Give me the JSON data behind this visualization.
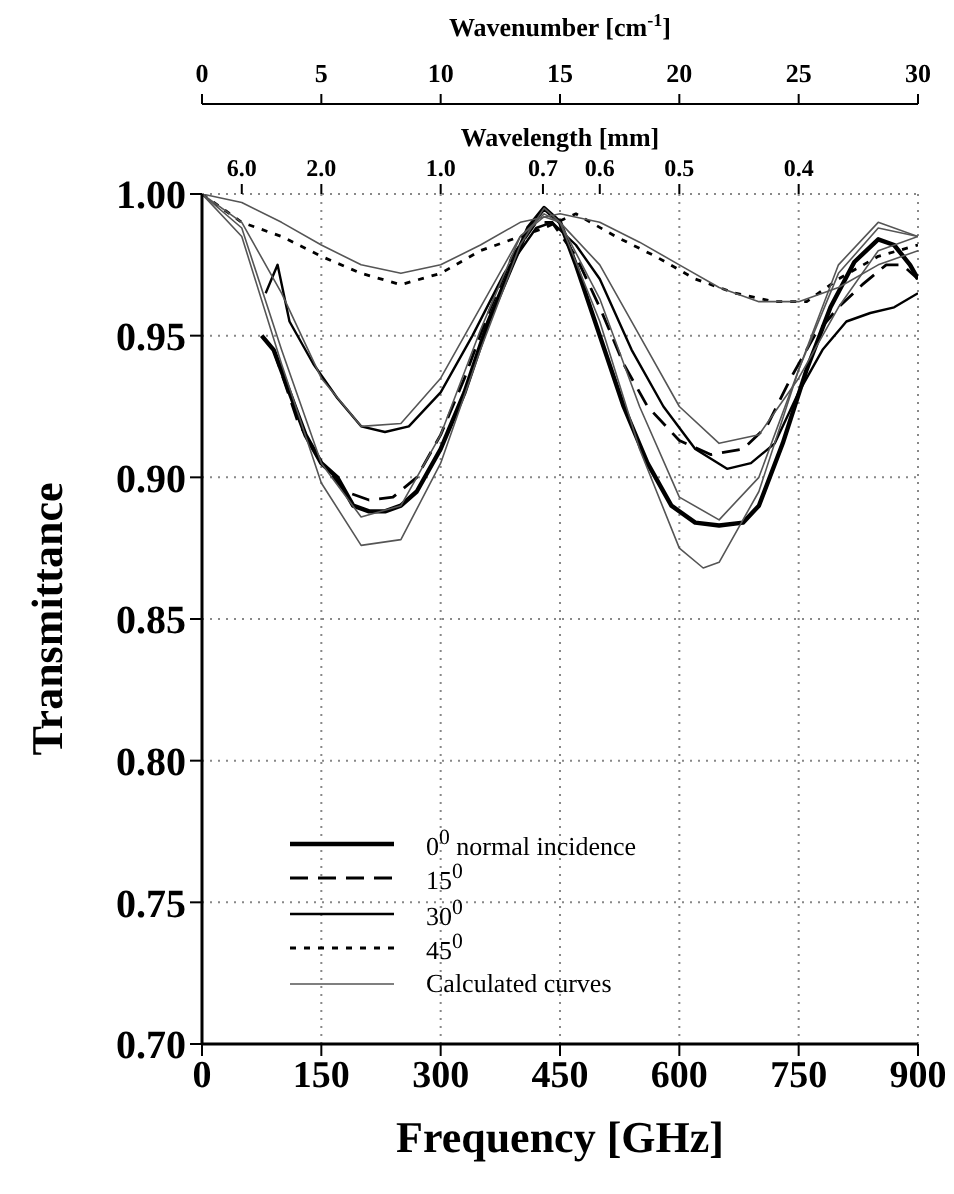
{
  "chart_data": {
    "type": "line",
    "xlabel": "Frequency [GHz]",
    "ylabel": "Transmittance",
    "x2label": "Wavenumber [cm$^{-1}$]",
    "xlim": [
      0,
      900
    ],
    "xticks": [
      0,
      150,
      300,
      450,
      600,
      750,
      900
    ],
    "ylim": [
      0.7,
      1.0
    ],
    "yticks": [
      {
        "value": 0.7,
        "label": "0.70"
      },
      0.75,
      {
        "value": 0.8,
        "label": "0.80"
      },
      0.85,
      {
        "value": 0.9,
        "label": "0.90"
      },
      0.95,
      {
        "value": 1.0,
        "label": "1.00"
      }
    ],
    "x2lim": [
      0,
      30
    ],
    "x2ticks": [
      0,
      5,
      10,
      15,
      20,
      25,
      30
    ],
    "annotations": [
      "Wavelength [mm]",
      "6.0",
      "2.0",
      "1.0",
      "0.7",
      "0.6",
      "0.5",
      "0.4"
    ],
    "grid": true,
    "legend": "bottom",
    "series": [
      {
        "name": "0$^{0}$ normal incidence",
        "color": "#000000",
        "line_style": "solid",
        "x": [
          75,
          90,
          110,
          130,
          150,
          170,
          190,
          210,
          230,
          250,
          270,
          300,
          330,
          360,
          390,
          410,
          430,
          450,
          470,
          500,
          530,
          560,
          590,
          620,
          650,
          680,
          700,
          730,
          760,
          790,
          820,
          850,
          870,
          890,
          900
        ],
        "values": [
          0.95,
          0.945,
          0.93,
          0.915,
          0.905,
          0.9,
          0.89,
          0.888,
          0.888,
          0.89,
          0.895,
          0.91,
          0.93,
          0.955,
          0.975,
          0.988,
          0.995,
          0.99,
          0.975,
          0.95,
          0.925,
          0.905,
          0.89,
          0.884,
          0.883,
          0.884,
          0.89,
          0.912,
          0.938,
          0.96,
          0.976,
          0.984,
          0.982,
          0.975,
          0.97
        ]
      },
      {
        "name": "15$^{0}$",
        "color": "#000000",
        "line_style": "dashed",
        "x": [
          90,
          120,
          150,
          180,
          210,
          240,
          270,
          300,
          330,
          360,
          390,
          420,
          440,
          470,
          500,
          530,
          560,
          600,
          640,
          680,
          710,
          740,
          770,
          800,
          830,
          860,
          880,
          900
        ],
        "values": [
          0.945,
          0.92,
          0.905,
          0.895,
          0.892,
          0.893,
          0.9,
          0.915,
          0.935,
          0.958,
          0.978,
          0.99,
          0.99,
          0.978,
          0.96,
          0.94,
          0.925,
          0.913,
          0.908,
          0.91,
          0.918,
          0.935,
          0.95,
          0.96,
          0.968,
          0.975,
          0.975,
          0.97
        ]
      },
      {
        "name": "30$^{0}$",
        "color": "#000000",
        "line_style": "solid",
        "x": [
          80,
          95,
          110,
          140,
          170,
          200,
          230,
          260,
          300,
          340,
          380,
          420,
          440,
          470,
          500,
          540,
          580,
          620,
          660,
          690,
          720,
          750,
          780,
          810,
          840,
          870,
          900
        ],
        "values": [
          0.965,
          0.975,
          0.955,
          0.94,
          0.928,
          0.918,
          0.916,
          0.918,
          0.93,
          0.95,
          0.972,
          0.988,
          0.99,
          0.982,
          0.97,
          0.945,
          0.925,
          0.91,
          0.903,
          0.905,
          0.912,
          0.93,
          0.945,
          0.955,
          0.958,
          0.96,
          0.965
        ]
      },
      {
        "name": "45$^{0}$",
        "color": "#000000",
        "line_style": "dotted",
        "x": [
          0,
          50,
          100,
          150,
          200,
          250,
          300,
          350,
          400,
          430,
          470,
          520,
          570,
          620,
          670,
          720,
          760,
          800,
          850,
          900
        ],
        "values": [
          1.0,
          0.99,
          0.985,
          0.978,
          0.972,
          0.968,
          0.972,
          0.98,
          0.985,
          0.988,
          0.993,
          0.985,
          0.978,
          0.97,
          0.965,
          0.962,
          0.962,
          0.97,
          0.978,
          0.982
        ]
      },
      {
        "name": "Calculated curves",
        "color": "#555555",
        "line_style": "solid",
        "x": [
          0,
          50,
          100,
          150,
          200,
          250,
          300,
          350,
          400,
          430,
          450,
          500,
          550,
          600,
          630,
          650,
          700,
          750,
          800,
          850,
          900
        ],
        "values": [
          1.0,
          0.985,
          0.94,
          0.898,
          0.876,
          0.878,
          0.905,
          0.945,
          0.982,
          0.995,
          0.99,
          0.955,
          0.91,
          0.875,
          0.868,
          0.87,
          0.895,
          0.938,
          0.975,
          0.99,
          0.985
        ]
      },
      {
        "color": "#555555",
        "line_style": "solid",
        "x": [
          0,
          50,
          100,
          150,
          200,
          250,
          300,
          350,
          400,
          430,
          450,
          500,
          550,
          600,
          650,
          700,
          750,
          800,
          850,
          900
        ],
        "values": [
          1.0,
          0.988,
          0.945,
          0.905,
          0.886,
          0.89,
          0.915,
          0.952,
          0.985,
          0.993,
          0.99,
          0.963,
          0.925,
          0.893,
          0.885,
          0.9,
          0.938,
          0.972,
          0.988,
          0.985
        ]
      },
      {
        "color": "#555555",
        "line_style": "solid",
        "x": [
          0,
          50,
          100,
          150,
          200,
          250,
          300,
          350,
          400,
          430,
          450,
          500,
          550,
          600,
          650,
          700,
          750,
          800,
          850,
          900
        ],
        "values": [
          1.0,
          0.99,
          0.965,
          0.935,
          0.918,
          0.919,
          0.935,
          0.96,
          0.985,
          0.992,
          0.99,
          0.975,
          0.95,
          0.925,
          0.912,
          0.915,
          0.935,
          0.96,
          0.98,
          0.985
        ]
      },
      {
        "color": "#555555",
        "line_style": "solid",
        "x": [
          0,
          50,
          100,
          150,
          200,
          250,
          300,
          350,
          400,
          450,
          500,
          550,
          600,
          650,
          700,
          750,
          800,
          850,
          900
        ],
        "values": [
          1.0,
          0.997,
          0.99,
          0.982,
          0.975,
          0.972,
          0.975,
          0.982,
          0.99,
          0.993,
          0.99,
          0.983,
          0.975,
          0.967,
          0.962,
          0.962,
          0.967,
          0.975,
          0.98
        ]
      }
    ]
  }
}
